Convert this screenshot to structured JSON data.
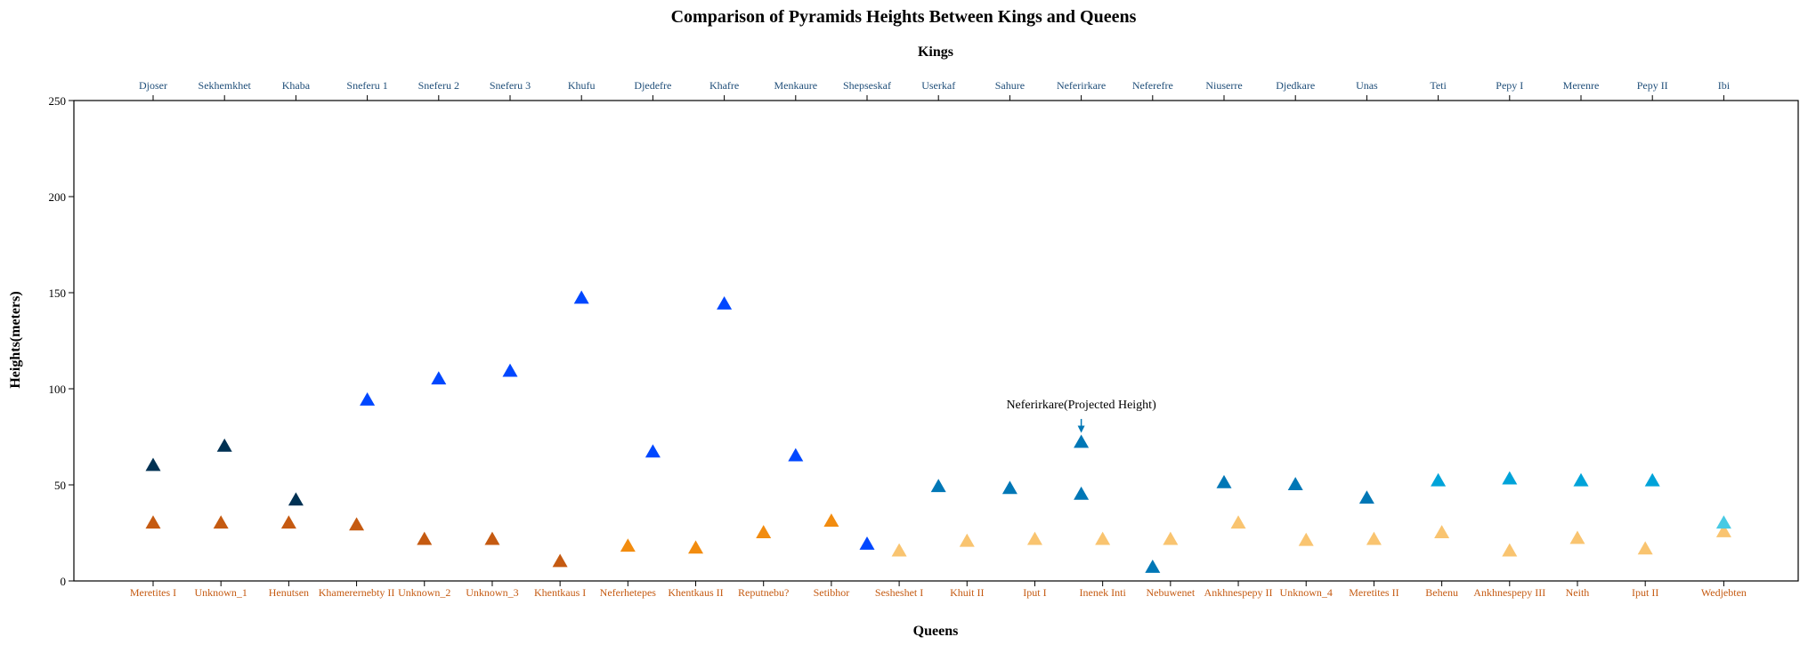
{
  "chart_data": {
    "type": "scatter",
    "title": "Comparison of Pyramids Heights Between Kings and Queens",
    "ylabel": "Heights(meters)",
    "top_xlabel": "Kings",
    "bottom_xlabel": "Queens",
    "ylim": [
      0,
      250
    ],
    "yticks": [
      0,
      50,
      100,
      150,
      200,
      250
    ],
    "marker": "triangle",
    "kings": {
      "names": [
        "Djoser",
        "Sekhemkhet",
        "Khaba",
        "Sneferu 1",
        "Sneferu 2",
        "Sneferu 3",
        "Khufu",
        "Djedefre",
        "Khafre",
        "Menkaure",
        "Shepseskaf",
        "Userkaf",
        "Sahure",
        "Neferirkare",
        "Neferefre",
        "Niuserre",
        "Djedkare",
        "Unas",
        "Teti",
        "Pepy I",
        "Merenre",
        "Pepy II",
        "Ibi"
      ],
      "points": [
        {
          "x": 0,
          "y": 60,
          "color": "#003153"
        },
        {
          "x": 1,
          "y": 70,
          "color": "#003153"
        },
        {
          "x": 2,
          "y": 42,
          "color": "#003153"
        },
        {
          "x": 3,
          "y": 94,
          "color": "#0047ff"
        },
        {
          "x": 4,
          "y": 105,
          "color": "#0047ff"
        },
        {
          "x": 5,
          "y": 109,
          "color": "#0047ff"
        },
        {
          "x": 6,
          "y": 147,
          "color": "#0047ff"
        },
        {
          "x": 7,
          "y": 67,
          "color": "#0047ff"
        },
        {
          "x": 8,
          "y": 144,
          "color": "#0047ff"
        },
        {
          "x": 9,
          "y": 65,
          "color": "#0047ff"
        },
        {
          "x": 10,
          "y": 19,
          "color": "#0047ff"
        },
        {
          "x": 11,
          "y": 49,
          "color": "#0077b6"
        },
        {
          "x": 12,
          "y": 48,
          "color": "#0077b6"
        },
        {
          "x": 13,
          "y": 72,
          "color": "#0077b6"
        },
        {
          "x": 13,
          "y": 45,
          "color": "#0077b6"
        },
        {
          "x": 14,
          "y": 7,
          "color": "#0077b6"
        },
        {
          "x": 15,
          "y": 51,
          "color": "#0077b6"
        },
        {
          "x": 16,
          "y": 50,
          "color": "#0077b6"
        },
        {
          "x": 17,
          "y": 43,
          "color": "#0077b6"
        },
        {
          "x": 18,
          "y": 52,
          "color": "#00a3d9"
        },
        {
          "x": 19,
          "y": 53,
          "color": "#00a3d9"
        },
        {
          "x": 20,
          "y": 52,
          "color": "#00a3d9"
        },
        {
          "x": 21,
          "y": 52,
          "color": "#00a3d9"
        },
        {
          "x": 22,
          "y": 30,
          "color": "#48cae4"
        }
      ]
    },
    "queens": {
      "labels": [
        {
          "name": "Meretites I",
          "x": 0
        },
        {
          "name": "Unknown_1",
          "x": 0.95
        },
        {
          "name": "Henutsen",
          "x": 1.9
        },
        {
          "name": "Khamerernebty II",
          "x": 2.85
        },
        {
          "name": "Unknown_2",
          "x": 3.8
        },
        {
          "name": "Unknown_3",
          "x": 4.75
        },
        {
          "name": "Khentkaus I",
          "x": 5.7
        },
        {
          "name": "Neferhetepes",
          "x": 6.65
        },
        {
          "name": "Khentkaus II",
          "x": 7.6
        },
        {
          "name": "Reputnebu?",
          "x": 8.55
        },
        {
          "name": "Setibhor",
          "x": 9.5
        },
        {
          "name": "Sesheshet I",
          "x": 10.45
        },
        {
          "name": "Khuit II",
          "x": 11.4
        },
        {
          "name": "Iput I",
          "x": 12.35
        },
        {
          "name": "Inenek Inti",
          "x": 13.3
        },
        {
          "name": "Nebuwenet",
          "x": 14.25
        },
        {
          "name": "Ankhnespepy II",
          "x": 15.2
        },
        {
          "name": "Unknown_4",
          "x": 16.15
        },
        {
          "name": "Meretites II",
          "x": 17.1
        },
        {
          "name": "Behenu",
          "x": 18.05
        },
        {
          "name": "Ankhnespepy III",
          "x": 19
        },
        {
          "name": "Neith",
          "x": 19.95
        },
        {
          "name": "Iput II",
          "x": 20.9
        },
        {
          "name": "Wedjebten",
          "x": 22
        }
      ],
      "points": [
        {
          "x": 0,
          "y": 30,
          "color": "#c55a11"
        },
        {
          "x": 0.95,
          "y": 30,
          "color": "#c55a11"
        },
        {
          "x": 1.9,
          "y": 30,
          "color": "#c55a11"
        },
        {
          "x": 2.85,
          "y": 29,
          "color": "#c55a11"
        },
        {
          "x": 3.8,
          "y": 21.5,
          "color": "#c55a11"
        },
        {
          "x": 4.75,
          "y": 21.5,
          "color": "#c55a11"
        },
        {
          "x": 5.7,
          "y": 10,
          "color": "#c55a11"
        },
        {
          "x": 6.65,
          "y": 18,
          "color": "#f28c0f"
        },
        {
          "x": 7.6,
          "y": 17,
          "color": "#f28c0f"
        },
        {
          "x": 8.55,
          "y": 25,
          "color": "#f28c0f"
        },
        {
          "x": 9.5,
          "y": 31,
          "color": "#f28c0f"
        },
        {
          "x": 10.45,
          "y": 15.5,
          "color": "#f9c470"
        },
        {
          "x": 11.4,
          "y": 20.5,
          "color": "#f9c470"
        },
        {
          "x": 12.35,
          "y": 21.5,
          "color": "#f9c470"
        },
        {
          "x": 13.3,
          "y": 21.5,
          "color": "#f9c470"
        },
        {
          "x": 14.25,
          "y": 21.5,
          "color": "#f9c470"
        },
        {
          "x": 15.2,
          "y": 30,
          "color": "#f9c470"
        },
        {
          "x": 16.15,
          "y": 21,
          "color": "#f9c470"
        },
        {
          "x": 17.1,
          "y": 21.5,
          "color": "#f9c470"
        },
        {
          "x": 18.05,
          "y": 25,
          "color": "#f9c470"
        },
        {
          "x": 19,
          "y": 15.5,
          "color": "#f9c470"
        },
        {
          "x": 19.95,
          "y": 22,
          "color": "#f9c470"
        },
        {
          "x": 20.9,
          "y": 16.5,
          "color": "#f9c470"
        },
        {
          "x": 22,
          "y": 25.5,
          "color": "#f9c470"
        }
      ]
    },
    "annotation": {
      "text": "Neferirkare(Projected Height)",
      "x": 13,
      "y": 72,
      "text_y": 88,
      "color": "#0077b6"
    }
  }
}
